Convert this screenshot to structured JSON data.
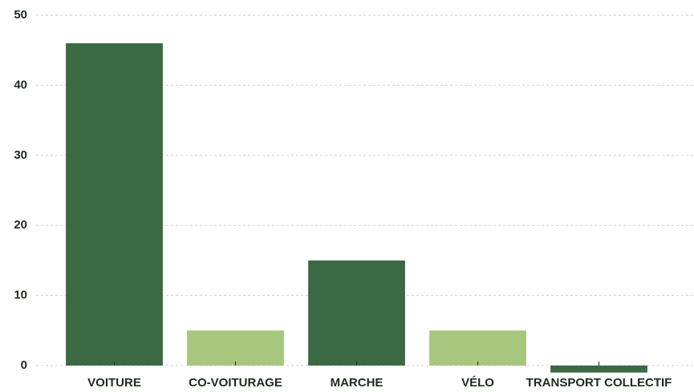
{
  "chart_data": {
    "type": "bar",
    "categories": [
      "VOITURE",
      "CO-VOITURAGE",
      "MARCHE",
      "VÉLO",
      "TRANSPORT COLLECTIF"
    ],
    "values": [
      46,
      5,
      15,
      5,
      -1
    ],
    "colors": [
      "#3a6944",
      "#a7c77f",
      "#3a6944",
      "#a7c77f",
      "#3a6944"
    ],
    "ylim": [
      0,
      50
    ],
    "yticks": [
      0,
      10,
      20,
      30,
      40,
      50
    ],
    "grid": true
  }
}
